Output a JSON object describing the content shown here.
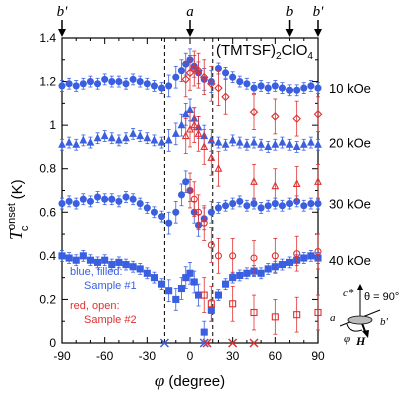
{
  "chart_data": {
    "type": "scatter",
    "title": "(TMTSF)2ClO4",
    "xlabel": "φ (degree)",
    "ylabel": "Tc onset (K)",
    "xlim": [
      -90,
      90
    ],
    "ylim": [
      0,
      1.4
    ],
    "xticks": [
      "-90",
      "-60",
      "-30",
      "0",
      "30",
      "60",
      "90"
    ],
    "yticks": [
      "0",
      "0.2",
      "0.4",
      "0.6",
      "0.8",
      "1",
      "1.2",
      "1.4"
    ],
    "grid": false,
    "top_labels": [
      {
        "text": "b'",
        "x": -90
      },
      {
        "text": "a",
        "x": 0
      },
      {
        "text": "b",
        "x": 70
      },
      {
        "text": "b'",
        "x": 90
      }
    ],
    "vlines": [
      -18,
      16
    ],
    "field_labels": [
      {
        "text": "10 kOe",
        "y": 1.17
      },
      {
        "text": "20 kOe",
        "y": 0.92
      },
      {
        "text": "30 kOe",
        "y": 0.64
      },
      {
        "text": "40 kOe",
        "y": 0.38
      }
    ],
    "legend": {
      "sample1_line1": "blue, filled:",
      "sample1_line2": "Sample #1",
      "sample2_line1": "red, open:",
      "sample2_line2": "Sample #2"
    },
    "inset": {
      "c_star": "c*",
      "theta": "θ = 90°",
      "a": "a",
      "b_prime": "b'",
      "phi": "φ",
      "H": "H"
    },
    "colors": {
      "blue": "#3a5fe0",
      "red": "#e03030"
    },
    "series": [
      {
        "name": "Sample #1, 10 kOe",
        "sample": 1,
        "marker": "circle",
        "x": [
          -90,
          -85,
          -80,
          -75,
          -70,
          -65,
          -60,
          -55,
          -50,
          -45,
          -40,
          -35,
          -30,
          -25,
          -20,
          -15,
          -10,
          -6,
          -3,
          0,
          3,
          6,
          10,
          15,
          20,
          25,
          30,
          35,
          40,
          45,
          50,
          55,
          60,
          65,
          70,
          75,
          80,
          85,
          90
        ],
        "y": [
          1.18,
          1.19,
          1.18,
          1.19,
          1.2,
          1.19,
          1.21,
          1.2,
          1.2,
          1.19,
          1.21,
          1.2,
          1.19,
          1.18,
          1.17,
          1.18,
          1.22,
          1.25,
          1.28,
          1.3,
          1.27,
          1.24,
          1.21,
          1.2,
          1.26,
          1.24,
          1.22,
          1.2,
          1.19,
          1.17,
          1.18,
          1.17,
          1.18,
          1.17,
          1.16,
          1.16,
          1.17,
          1.18,
          1.17
        ]
      },
      {
        "name": "Sample #1, 20 kOe",
        "sample": 1,
        "marker": "triangle",
        "x": [
          -90,
          -85,
          -80,
          -75,
          -70,
          -65,
          -60,
          -55,
          -50,
          -45,
          -40,
          -35,
          -30,
          -25,
          -20,
          -15,
          -10,
          -6,
          -3,
          0,
          3,
          6,
          10,
          15,
          20,
          25,
          30,
          35,
          40,
          45,
          50,
          55,
          60,
          65,
          70,
          75,
          80,
          85,
          90
        ],
        "y": [
          0.91,
          0.92,
          0.91,
          0.93,
          0.92,
          0.94,
          0.95,
          0.94,
          0.93,
          0.94,
          0.96,
          0.95,
          0.94,
          0.93,
          0.92,
          0.93,
          0.96,
          1.0,
          1.05,
          1.07,
          1.03,
          0.99,
          0.95,
          0.93,
          0.92,
          0.91,
          0.93,
          0.92,
          0.91,
          0.92,
          0.91,
          0.9,
          0.91,
          0.92,
          0.91,
          0.9,
          0.91,
          0.92,
          0.91
        ]
      },
      {
        "name": "Sample #1, 30 kOe",
        "sample": 1,
        "marker": "circle",
        "x": [
          -90,
          -85,
          -80,
          -75,
          -70,
          -65,
          -60,
          -55,
          -50,
          -45,
          -40,
          -35,
          -30,
          -25,
          -20,
          -15,
          -10,
          -6,
          -3,
          0,
          3,
          6,
          10,
          15,
          20,
          25,
          30,
          35,
          40,
          45,
          50,
          55,
          60,
          65,
          70,
          75,
          80,
          85,
          90
        ],
        "y": [
          0.64,
          0.65,
          0.64,
          0.66,
          0.65,
          0.67,
          0.66,
          0.66,
          0.65,
          0.67,
          0.66,
          0.64,
          0.62,
          0.6,
          0.58,
          0.55,
          0.6,
          0.68,
          0.74,
          0.7,
          0.6,
          0.54,
          0.57,
          0.6,
          0.62,
          0.63,
          0.64,
          0.65,
          0.63,
          0.64,
          0.62,
          0.63,
          0.64,
          0.63,
          0.64,
          0.65,
          0.63,
          0.64,
          0.64
        ]
      },
      {
        "name": "Sample #1, 40 kOe",
        "sample": 1,
        "marker": "square",
        "x": [
          -90,
          -85,
          -80,
          -75,
          -70,
          -65,
          -60,
          -55,
          -50,
          -45,
          -40,
          -35,
          -30,
          -25,
          -20,
          -15,
          -10,
          -6,
          -3,
          0,
          3,
          6,
          10,
          15,
          20,
          25,
          30,
          35,
          40,
          45,
          50,
          55,
          60,
          65,
          70,
          75,
          80,
          85,
          90
        ],
        "y": [
          0.4,
          0.39,
          0.38,
          0.4,
          0.38,
          0.37,
          0.38,
          0.36,
          0.37,
          0.36,
          0.35,
          0.34,
          0.32,
          0.3,
          0.27,
          0.24,
          0.2,
          0.25,
          0.3,
          0.32,
          0.28,
          0.22,
          0.05,
          0.15,
          0.22,
          0.27,
          0.3,
          0.31,
          0.32,
          0.33,
          0.32,
          0.34,
          0.35,
          0.36,
          0.37,
          0.38,
          0.39,
          0.4,
          0.39
        ]
      },
      {
        "name": "Sample #2, 10 kOe",
        "sample": 2,
        "marker": "diamond",
        "x": [
          -3,
          0,
          3,
          6,
          10,
          15,
          20,
          25,
          45,
          60,
          75,
          90
        ],
        "y": [
          1.21,
          1.24,
          1.26,
          1.25,
          1.22,
          1.19,
          1.17,
          1.13,
          1.06,
          1.04,
          1.03,
          1.05
        ]
      },
      {
        "name": "Sample #2, 20 kOe",
        "sample": 2,
        "marker": "triangle",
        "x": [
          -3,
          0,
          3,
          6,
          10,
          15,
          20,
          45,
          60,
          75,
          90
        ],
        "y": [
          0.95,
          0.98,
          1.0,
          0.96,
          0.9,
          0.85,
          0.8,
          0.74,
          0.72,
          0.73,
          0.74
        ]
      },
      {
        "name": "Sample #2, 30 kOe",
        "sample": 2,
        "marker": "circle",
        "x": [
          0,
          3,
          6,
          10,
          15,
          20,
          30,
          45,
          60,
          75,
          90
        ],
        "y": [
          0.7,
          0.66,
          0.6,
          0.55,
          0.45,
          0.4,
          0.4,
          0.39,
          0.4,
          0.41,
          0.42
        ]
      },
      {
        "name": "Sample #2, 40 kOe",
        "sample": 2,
        "marker": "square",
        "x": [
          10,
          15,
          30,
          45,
          60,
          75,
          90
        ],
        "y": [
          0.22,
          0.18,
          0.18,
          0.14,
          0.12,
          0.13,
          0.14
        ]
      }
    ],
    "zero_crosses": [
      {
        "x": -18,
        "sample": 1
      },
      {
        "x": 10,
        "sample": 1
      },
      {
        "x": 12,
        "sample": 2
      },
      {
        "x": 30,
        "sample": 2
      },
      {
        "x": 45,
        "sample": 2
      }
    ]
  }
}
